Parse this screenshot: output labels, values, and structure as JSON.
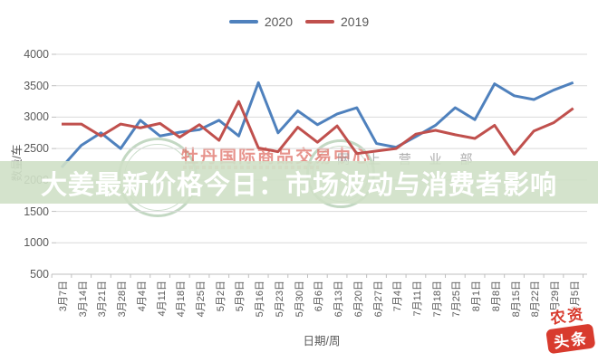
{
  "headline": {
    "text": "大姜最新价格今日：市场波动与消费者影响"
  },
  "legend": {
    "items": [
      {
        "label": "2020"
      },
      {
        "label": "2019"
      }
    ]
  },
  "watermark": {
    "org": "牡丹国际商品交易中心",
    "dept": "网 上 营 业 部"
  },
  "corner_logo": {
    "line1": "农资",
    "line2": "头条"
  },
  "colors": {
    "series_2020": "#4f81bd",
    "series_2019": "#c0504d",
    "gridline": "#d9d9d9",
    "axis": "#bfbfbf",
    "axis_text": "#595959",
    "banner_bg": "#cfe0c7",
    "logo_red": "#d83b2e"
  },
  "chart_data": {
    "type": "line",
    "title": "",
    "xlabel": "日期/周",
    "ylabel": "数量/车",
    "ylim": [
      500,
      4000
    ],
    "ytick_step": 500,
    "grid": true,
    "legend_position": "top-center",
    "x": [
      "3月7日",
      "3月14日",
      "3月21日",
      "3月28日",
      "4月4日",
      "4月11日",
      "4月18日",
      "4月25日",
      "5月2日",
      "5月9日",
      "5月16日",
      "5月23日",
      "5月30日",
      "6月6日",
      "6月13日",
      "6月20日",
      "6月27日",
      "7月4日",
      "7月11日",
      "7月18日",
      "7月25日",
      "8月1日",
      "8月8日",
      "8月15日",
      "8月22日",
      "8月29日",
      "9月5日"
    ],
    "series": [
      {
        "name": "2020",
        "color": "#4f81bd",
        "values": [
          2200,
          2550,
          2750,
          2500,
          2950,
          2700,
          2760,
          2800,
          2950,
          2700,
          3550,
          2750,
          3100,
          2880,
          3050,
          3150,
          2580,
          2520,
          2690,
          2870,
          3150,
          2960,
          3530,
          3340,
          3280,
          3430,
          3550
        ]
      },
      {
        "name": "2019",
        "color": "#c0504d",
        "values": [
          2890,
          2890,
          2700,
          2890,
          2830,
          2900,
          2680,
          2880,
          2630,
          3250,
          2510,
          2450,
          2840,
          2600,
          2860,
          2420,
          2460,
          2500,
          2730,
          2790,
          2720,
          2660,
          2870,
          2410,
          2780,
          2910,
          3140
        ]
      }
    ]
  }
}
